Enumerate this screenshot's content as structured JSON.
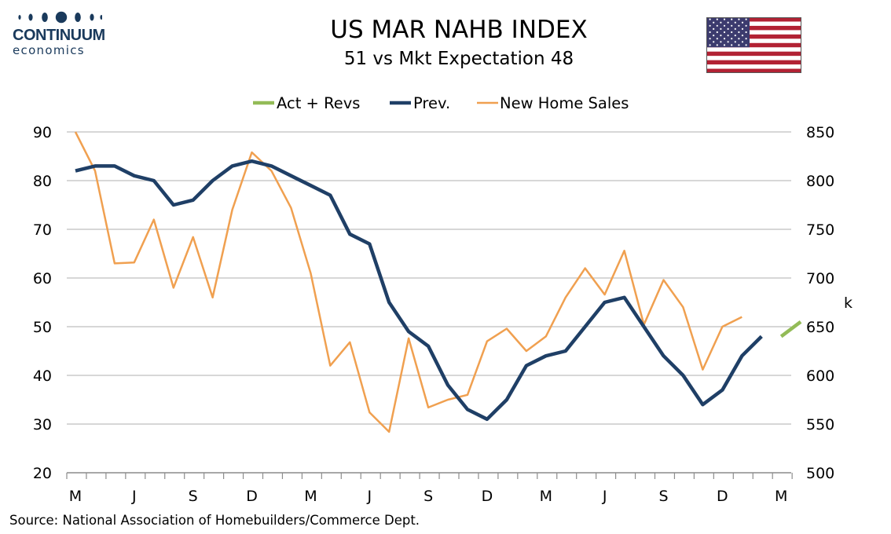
{
  "header": {
    "logo_word": "CONTINUUM",
    "logo_sub": "economics",
    "title": "US MAR NAHB INDEX",
    "subtitle": "51 vs Mkt Expectation 48"
  },
  "footer": {
    "source": "Source: National Association of Homebuilders/Commerce Dept."
  },
  "colors": {
    "act_revs": "#93bb57",
    "prev": "#1f3f66",
    "new_home_sales": "#f0a050",
    "grid": "#bfbfbf",
    "logo": "#1a3a5c"
  },
  "chart_data": {
    "type": "line",
    "title": "US MAR NAHB INDEX",
    "subtitle": "51 vs Mkt Expectation 48",
    "x_tick_labels": [
      "M",
      "J",
      "S",
      "D",
      "M",
      "J",
      "S",
      "D",
      "M",
      "J",
      "S",
      "D",
      "M"
    ],
    "y_left": {
      "ticks": [
        20,
        30,
        40,
        50,
        60,
        70,
        80,
        90
      ],
      "ylim": [
        20,
        90
      ],
      "label": ""
    },
    "y_right": {
      "ticks": [
        500,
        550,
        600,
        650,
        700,
        750,
        800,
        850
      ],
      "ylim": [
        500,
        850
      ],
      "label": "k"
    },
    "grid": "horizontal",
    "legend_position": "top-center",
    "series": [
      {
        "name": "Act + Revs",
        "axis": "left",
        "start_index": 36,
        "values": [
          48,
          51
        ]
      },
      {
        "name": "Prev.",
        "axis": "left",
        "start_index": 0,
        "values": [
          82,
          83,
          83,
          81,
          80,
          75,
          76,
          80,
          83,
          84,
          83,
          81,
          79,
          77,
          69,
          67,
          55,
          49,
          46,
          38,
          33,
          31,
          35,
          42,
          44,
          45,
          50,
          55,
          56,
          50,
          44,
          40,
          34,
          37,
          44,
          48
        ]
      },
      {
        "name": "New Home Sales",
        "axis": "right",
        "start_index": 0,
        "values": [
          850,
          810,
          715,
          716,
          760,
          690,
          742,
          680,
          770,
          829,
          810,
          772,
          705,
          610,
          634,
          562,
          542,
          638,
          567,
          575,
          580,
          635,
          648,
          625,
          640,
          680,
          710,
          683,
          728,
          652,
          698,
          670,
          606,
          650,
          660
        ]
      }
    ]
  }
}
